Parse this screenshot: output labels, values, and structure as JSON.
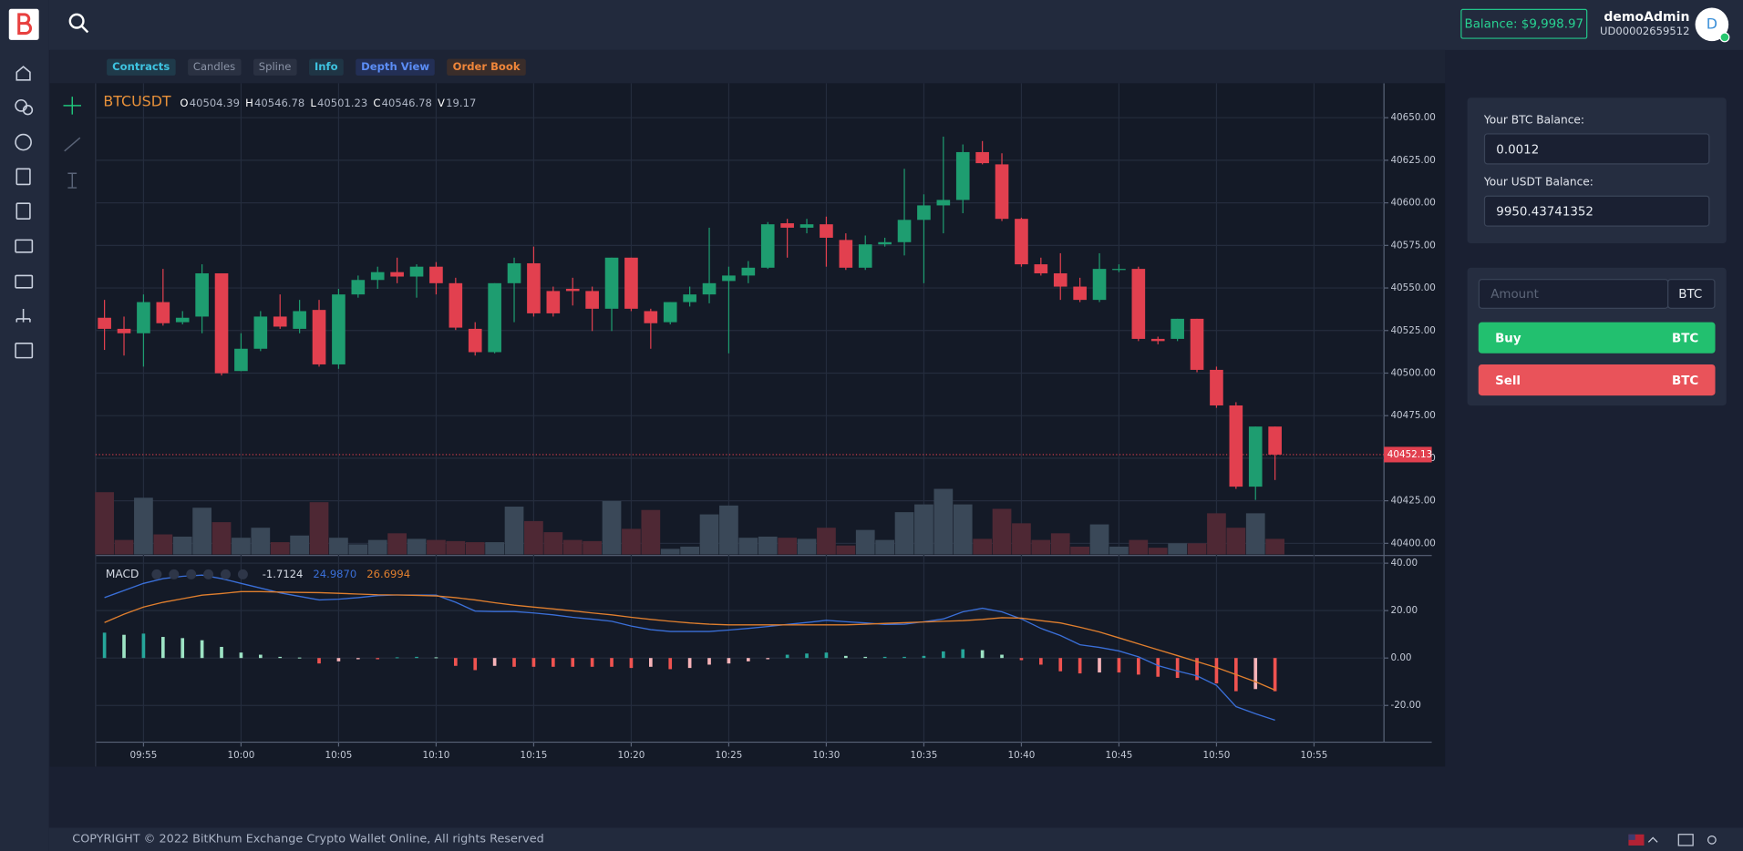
{
  "header": {
    "balance": "Balance: $9,998.97",
    "username": "demoAdmin",
    "user_id": "UD00002659512",
    "avatar": "D"
  },
  "tabs": [
    "Contracts",
    "Candles",
    "Spline",
    "Info",
    "Depth View",
    "Order Book"
  ],
  "chart_data": [
    {
      "type": "candlestick",
      "symbol": "BTCUSDT",
      "readout": [
        {
          "key": "O",
          "value": "40504.39"
        },
        {
          "key": "H",
          "value": "40546.78"
        },
        {
          "key": "L",
          "value": "40501.23"
        },
        {
          "key": "C",
          "value": "40546.78"
        },
        {
          "key": "V",
          "value": "19.17"
        }
      ],
      "categories": [
        null,
        null,
        "09:55",
        null,
        null,
        null,
        null,
        "10:00",
        null,
        null,
        null,
        null,
        "10:05",
        null,
        null,
        null,
        null,
        "10:10",
        null,
        null,
        null,
        null,
        "10:15",
        null,
        null,
        null,
        null,
        "10:20",
        null,
        null,
        null,
        null,
        "10:25",
        null,
        null,
        null,
        null,
        "10:30",
        null,
        null,
        null,
        null,
        "10:35",
        null,
        null,
        null,
        null,
        "10:40",
        null,
        null,
        null,
        null,
        "10:45",
        null,
        null,
        null,
        null,
        "10:50",
        null,
        null,
        null,
        null,
        "10:55"
      ],
      "open": [
        40532.5,
        40526.0,
        40523.4,
        40541.7,
        40529.9,
        40533.2,
        40558.6,
        40501.2,
        40514.3,
        40533.2,
        40526.0,
        40537.1,
        40505.1,
        40546.2,
        40554.7,
        40559.3,
        40556.7,
        40562.5,
        40552.8,
        40526.0,
        40512.3,
        40552.8,
        40564.5,
        40548.2,
        40549.5,
        40548.2,
        40537.8,
        40567.8,
        40536.4,
        40529.9,
        40541.7,
        40546.2,
        40554.1,
        40557.3,
        40561.9,
        40588.0,
        40585.4,
        40587.4,
        40578.2,
        40561.9,
        40575.6,
        40576.9,
        40590.0,
        40598.5,
        40601.7,
        40629.8,
        40622.6,
        40590.6,
        40563.9,
        40558.6,
        40550.8,
        40543.0,
        40560.6,
        40561.2,
        40520.1,
        40520.1,
        40531.9,
        40501.9,
        40481.0,
        40433.3,
        40468.6,
        null,
        null
      ],
      "high": [
        40543.0,
        40533.2,
        40546.2,
        40561.2,
        40536.4,
        40563.9,
        40558.6,
        40523.4,
        40536.4,
        40546.2,
        40543.0,
        40543.0,
        40549.5,
        40557.3,
        40562.5,
        40567.8,
        40563.9,
        40565.2,
        40556.0,
        40529.9,
        40552.8,
        40567.8,
        40574.3,
        40550.8,
        40556.0,
        40550.8,
        40567.8,
        40567.8,
        40537.8,
        40541.7,
        40550.8,
        40585.4,
        40562.5,
        40565.8,
        40588.7,
        40590.6,
        40590.6,
        40591.9,
        40582.1,
        40580.8,
        40579.5,
        40620.0,
        40605.0,
        40638.9,
        40634.3,
        40636.3,
        40629.1,
        40591.3,
        40567.8,
        40570.4,
        40556.0,
        40570.4,
        40563.9,
        40562.5,
        40521.4,
        40531.9,
        40531.9,
        40503.8,
        40482.9,
        40468.6,
        40468.6,
        null,
        null
      ],
      "low": [
        40513.6,
        40510.3,
        40503.8,
        40527.9,
        40528.6,
        40523.4,
        40498.6,
        40501.2,
        40512.9,
        40526.0,
        40523.4,
        40503.8,
        40502.5,
        40544.3,
        40549.5,
        40552.8,
        40544.3,
        40546.2,
        40525.3,
        40510.3,
        40511.6,
        40529.9,
        40533.2,
        40533.2,
        40539.7,
        40524.7,
        40524.7,
        40536.4,
        40514.3,
        40528.6,
        40539.1,
        40541.0,
        40511.6,
        40552.8,
        40561.2,
        40567.8,
        40582.1,
        40562.5,
        40560.6,
        40560.6,
        40574.3,
        40569.1,
        40552.8,
        40582.1,
        40593.9,
        40622.6,
        40589.3,
        40562.5,
        40557.3,
        40543.0,
        40541.7,
        40541.7,
        40559.3,
        40518.8,
        40516.9,
        40518.8,
        40500.5,
        40479.6,
        40432.0,
        40425.5,
        40437.2,
        null,
        null
      ],
      "close": [
        40526.0,
        40523.4,
        40541.7,
        40529.3,
        40532.5,
        40558.6,
        40499.9,
        40514.3,
        40533.2,
        40527.3,
        40536.4,
        40505.1,
        40546.2,
        40554.7,
        40559.3,
        40556.7,
        40562.5,
        40552.8,
        40526.7,
        40512.3,
        40552.8,
        40564.5,
        40535.1,
        40535.1,
        40548.2,
        40537.8,
        40567.8,
        40537.8,
        40529.3,
        40541.7,
        40546.2,
        40552.8,
        40557.3,
        40561.9,
        40587.4,
        40585.4,
        40587.4,
        40579.5,
        40561.9,
        40575.6,
        40576.9,
        40590.0,
        40598.5,
        40601.7,
        40629.8,
        40623.3,
        40590.6,
        40563.9,
        40558.6,
        40550.8,
        40543.0,
        40561.2,
        40561.2,
        40520.1,
        40518.8,
        40531.9,
        40501.9,
        40481.0,
        40433.3,
        40468.6,
        40452.13,
        null,
        null
      ],
      "volume": [
        56,
        13,
        51,
        18,
        16,
        42,
        29,
        15,
        24,
        11,
        17,
        47,
        15,
        9,
        13,
        19,
        14,
        13,
        12,
        11,
        11,
        43,
        30,
        20,
        13,
        12,
        48,
        23,
        40,
        5,
        7,
        36,
        44,
        15,
        16,
        15,
        14,
        24,
        8,
        22,
        13,
        38,
        45,
        59,
        45,
        14,
        41,
        28,
        13,
        19,
        7,
        27,
        7,
        13,
        6,
        10,
        10,
        37,
        24,
        37,
        14,
        null,
        null
      ],
      "last_price": 40452.13,
      "ylim": [
        40393.5,
        40670.2
      ],
      "yticks": [
        {
          "value": 40400,
          "label": "40400.00"
        },
        {
          "value": 40425,
          "label": "40425.00"
        },
        {
          "value": 40450,
          "label": "40450.00"
        },
        {
          "value": 40475,
          "label": "40475.00"
        },
        {
          "value": 40500,
          "label": "40500.00"
        },
        {
          "value": 40525,
          "label": "40525.00"
        },
        {
          "value": 40550,
          "label": "40550.00"
        },
        {
          "value": 40575,
          "label": "40575.00"
        },
        {
          "value": 40600,
          "label": "40600.00"
        },
        {
          "value": 40625,
          "label": "40625.00"
        },
        {
          "value": 40650,
          "label": "40650.00"
        }
      ],
      "grid": true,
      "colors": {
        "up": "#1e9d70",
        "down": "#e2404f",
        "volume_up": "#3a4858",
        "volume_down": "#4e2834"
      }
    },
    {
      "type": "macd",
      "title": "MACD",
      "readout": [
        "-1.7124",
        "24.9870",
        "26.6994"
      ],
      "series": [
        {
          "type": "histogram",
          "color": "#26a69a",
          "values": [
            10.7,
            9.8,
            10.3,
            8.9,
            8.4,
            7.5,
            4.7,
            2.3,
            1.4,
            0.5,
            0.2,
            -2.3,
            -1.4,
            -0.5,
            -0.5,
            0.3,
            0.5,
            0.3,
            -3.3,
            -5.1,
            -3.3,
            -3.7,
            -3.7,
            -3.7,
            -3.7,
            -3.7,
            -3.7,
            -4.2,
            -3.7,
            -4.7,
            -4.2,
            -2.8,
            -2.3,
            -1.4,
            -0.5,
            1.4,
            1.9,
            2.3,
            0.9,
            0.5,
            0.5,
            0.5,
            0.9,
            2.8,
            3.7,
            3.3,
            1.4,
            -0.9,
            -2.8,
            -5.6,
            -6.5,
            -6.1,
            -6.1,
            -7.0,
            -7.9,
            -8.4,
            -9.3,
            -10.7,
            -14.0,
            -13.1,
            -14.0,
            null,
            null
          ]
        },
        {
          "type": "line",
          "color": "#3a6fd8",
          "values": [
            25.5,
            28.5,
            31.5,
            33.5,
            34.5,
            35.0,
            33.5,
            31.5,
            29.5,
            27.5,
            26.0,
            24.5,
            24.8,
            25.5,
            26.3,
            26.6,
            26.6,
            26.5,
            23.5,
            19.8,
            19.6,
            19.6,
            19.0,
            18.2,
            17.2,
            16.4,
            15.5,
            13.5,
            12.0,
            11.2,
            11.2,
            11.2,
            11.8,
            12.5,
            13.3,
            14.2,
            15.0,
            15.9,
            15.3,
            14.8,
            14.2,
            14.3,
            15.3,
            16.5,
            19.5,
            21.0,
            19.5,
            16.5,
            12.5,
            9.5,
            5.6,
            4.5,
            3.0,
            0.5,
            -3.2,
            -5.5,
            -7.5,
            -11.5,
            -20.5,
            -23.5,
            -26.2,
            null,
            null
          ]
        },
        {
          "type": "line",
          "color": "#e07f2e",
          "values": [
            15.0,
            18.5,
            21.5,
            23.5,
            25.0,
            26.5,
            27.2,
            28.0,
            28.0,
            27.8,
            27.7,
            27.6,
            27.3,
            27.0,
            26.7,
            26.6,
            26.4,
            26.2,
            25.5,
            24.5,
            23.3,
            22.3,
            21.5,
            20.7,
            19.9,
            19.0,
            18.2,
            17.2,
            16.3,
            15.5,
            14.8,
            14.3,
            14.0,
            14.0,
            14.0,
            14.0,
            14.0,
            14.0,
            14.0,
            14.3,
            14.6,
            14.9,
            15.2,
            15.5,
            15.8,
            16.3,
            17.0,
            16.8,
            15.8,
            14.8,
            13.0,
            11.0,
            8.5,
            6.0,
            3.5,
            1.0,
            -1.5,
            -4.0,
            -7.0,
            -10.0,
            -13.5,
            null,
            null
          ]
        }
      ],
      "ylim": [
        -35.5,
        40.9
      ],
      "yticks": [
        {
          "value": -20,
          "label": "-20.00"
        },
        {
          "value": 0,
          "label": "0.00"
        },
        {
          "value": 20,
          "label": "20.00"
        },
        {
          "value": 40,
          "label": "40.00"
        }
      ],
      "grid": true
    }
  ],
  "panel": {
    "btc_label": "Your BTC Balance:",
    "btc_value": "0.0012",
    "usdt_label": "Your USDT Balance:",
    "usdt_value": "9950.43741352",
    "amount_placeholder": "Amount",
    "amount_unit": "BTC",
    "buy": "Buy",
    "buy_unit": "BTC",
    "sell": "Sell",
    "sell_unit": "BTC"
  },
  "footer": {
    "copyright": "COPYRIGHT © 2022 BitKhum Exchange Crypto Wallet Online, All rights Reserved"
  }
}
